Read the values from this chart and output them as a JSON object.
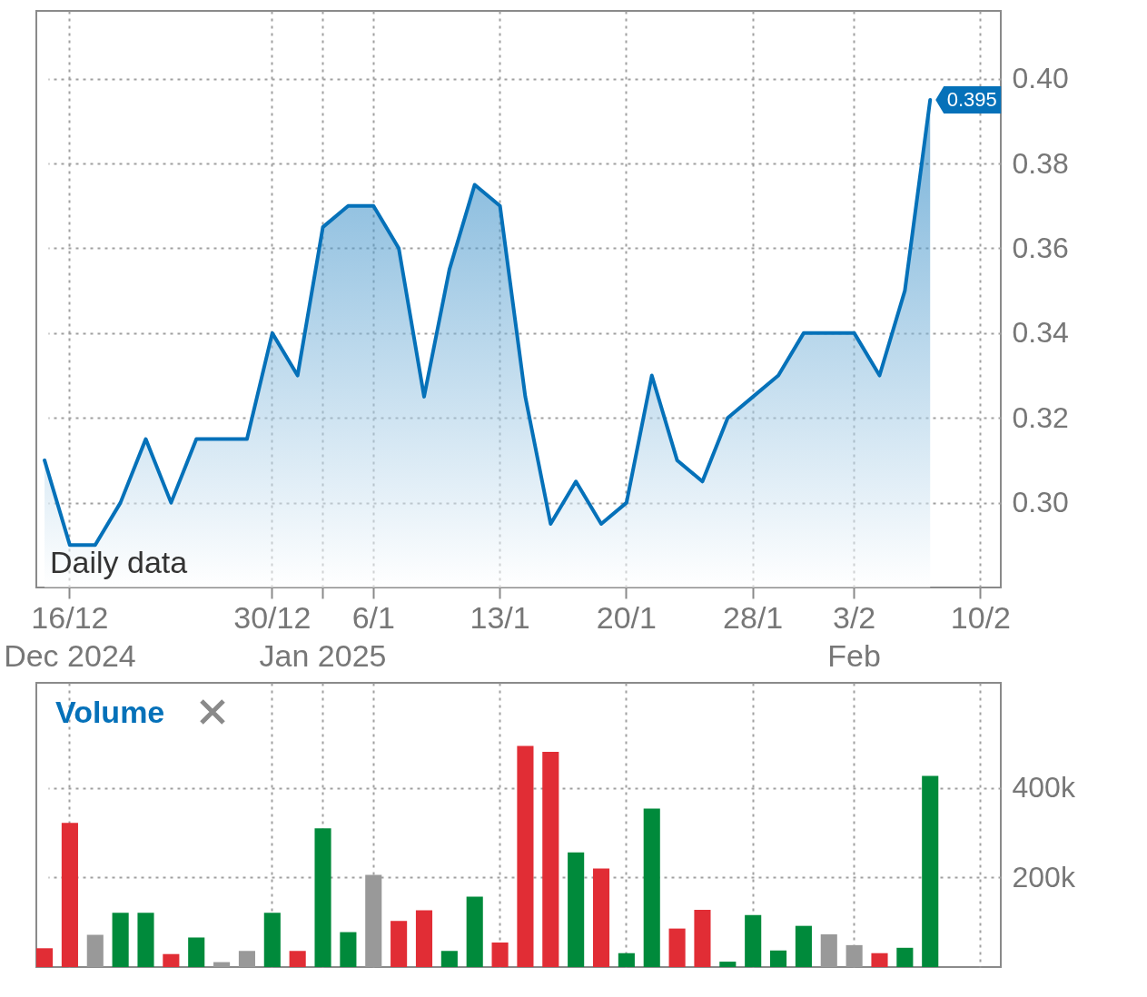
{
  "chart_data": [
    {
      "type": "area",
      "categories": [
        null,
        "16/12\nDec 2024",
        null,
        null,
        null,
        null,
        null,
        null,
        null,
        "30/12",
        null,
        "\nJan 2025",
        null,
        "6/1",
        null,
        null,
        null,
        null,
        "13/1",
        null,
        null,
        null,
        null,
        "20/1",
        null,
        null,
        null,
        null,
        "28/1",
        null,
        null,
        null,
        "3/2\nFeb",
        null,
        null,
        null,
        null,
        "10/2"
      ],
      "series": [
        {
          "color": "#0571b9",
          "values": [
            0.31,
            0.29,
            0.29,
            0.3,
            0.315,
            0.3,
            0.315,
            0.315,
            0.315,
            0.34,
            0.33,
            0.365,
            0.37,
            0.37,
            0.36,
            0.325,
            0.355,
            0.375,
            0.37,
            0.325,
            0.295,
            0.305,
            0.295,
            0.3,
            0.33,
            0.31,
            0.305,
            0.32,
            0.325,
            0.33,
            0.34,
            0.34,
            0.34,
            0.33,
            0.35,
            0.395,
            null,
            null
          ],
          "value_labels": [
            null,
            null,
            null,
            null,
            null,
            null,
            null,
            null,
            null,
            null,
            null,
            null,
            null,
            null,
            null,
            null,
            null,
            null,
            null,
            null,
            null,
            null,
            null,
            null,
            null,
            null,
            null,
            null,
            null,
            null,
            null,
            null,
            null,
            null,
            null,
            "0.395",
            null,
            null
          ]
        }
      ],
      "ylim": [
        0.28,
        0.416
      ],
      "yticks": [
        {
          "value": 0.3,
          "label": "0.30"
        },
        0.32,
        0.34,
        0.36,
        0.38,
        {
          "value": 0.4,
          "label": "0.40"
        }
      ],
      "grid": true,
      "annotations": [
        "Daily data"
      ]
    },
    {
      "type": "bar",
      "title": "Volume",
      "categories": [
        null,
        null,
        null,
        null,
        null,
        null,
        null,
        null,
        null,
        null,
        null,
        null,
        null,
        null,
        null,
        null,
        null,
        null,
        null,
        null,
        null,
        null,
        null,
        null,
        null,
        null,
        null,
        null,
        null,
        null,
        null,
        null,
        null,
        null,
        null,
        null,
        null,
        null
      ],
      "values": [
        42000,
        322000,
        72000,
        121000,
        121000,
        29000,
        66000,
        11000,
        36000,
        121000,
        36000,
        310000,
        78000,
        206000,
        103000,
        127000,
        36000,
        157000,
        55000,
        494000,
        481000,
        256000,
        220000,
        31000,
        354000,
        86000,
        128000,
        12000,
        116000,
        37000,
        92000,
        73000,
        49000,
        31000,
        43000,
        427000,
        null,
        null
      ],
      "colors": [
        "#e12d35",
        "#e12d35",
        "#999999",
        "#008a3b",
        "#008a3b",
        "#e12d35",
        "#008a3b",
        "#999999",
        "#999999",
        "#008a3b",
        "#e12d35",
        "#008a3b",
        "#008a3b",
        "#999999",
        "#e12d35",
        "#e12d35",
        "#008a3b",
        "#008a3b",
        "#e12d35",
        "#e12d35",
        "#e12d35",
        "#008a3b",
        "#e12d35",
        "#008a3b",
        "#008a3b",
        "#e12d35",
        "#e12d35",
        "#008a3b",
        "#008a3b",
        "#008a3b",
        "#008a3b",
        "#999999",
        "#999999",
        "#e12d35",
        "#008a3b",
        "#008a3b",
        null,
        null
      ],
      "ylim": [
        0,
        635000
      ],
      "yticks": [
        {
          "value": 200000,
          "label": "200k"
        },
        {
          "value": 400000,
          "label": "400k"
        }
      ],
      "grid": true,
      "tick_labels": "y"
    }
  ]
}
